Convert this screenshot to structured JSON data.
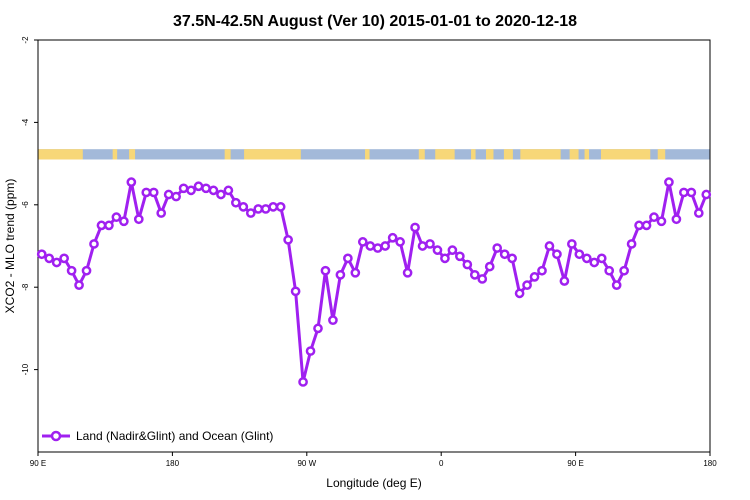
{
  "chart_data": {
    "type": "line",
    "title": "37.5N-42.5N August (Ver 10)   2015-01-01 to 2020-12-18",
    "xlabel": "Longitude (deg E)",
    "ylabel": "XCO2 - MLO trend (ppm)",
    "xlim": [
      90,
      540
    ],
    "ylim": [
      -12.0,
      -2.0
    ],
    "x_ticks": [
      {
        "value": 90,
        "label": "90 E"
      },
      {
        "value": 180,
        "label": "180"
      },
      {
        "value": 270,
        "label": "90 W"
      },
      {
        "value": 360,
        "label": "0"
      },
      {
        "value": 450,
        "label": "90 E"
      },
      {
        "value": 540,
        "label": "180"
      }
    ],
    "y_ticks": [
      {
        "value": -2,
        "label": "-2"
      },
      {
        "value": -4,
        "label": "-4"
      },
      {
        "value": -6,
        "label": "-6"
      },
      {
        "value": -8,
        "label": "-8"
      },
      {
        "value": -10,
        "label": "-10"
      }
    ],
    "legend_position": "bottom-left",
    "colors": {
      "series": "#a020f0",
      "land": "#f7d778",
      "ocean": "#a3b9d9"
    },
    "land_ocean_strip": {
      "y_top": -4.65,
      "y_bottom": -4.9,
      "land_segments": [
        [
          90,
          120
        ],
        [
          140,
          143
        ],
        [
          151,
          155
        ],
        [
          215,
          219
        ],
        [
          228,
          266
        ],
        [
          309,
          312
        ],
        [
          345,
          349
        ],
        [
          356,
          369
        ],
        [
          380,
          383
        ],
        [
          390,
          395
        ],
        [
          402,
          408
        ],
        [
          413,
          440
        ],
        [
          446,
          452
        ],
        [
          456,
          459
        ],
        [
          467,
          500
        ],
        [
          505,
          510
        ]
      ]
    },
    "series": [
      {
        "name": "Land (Nadir&Glint) and Ocean (Glint)",
        "x": [
          92.5,
          97.5,
          102.5,
          107.5,
          112.5,
          117.5,
          122.5,
          127.5,
          132.5,
          137.5,
          142.5,
          147.5,
          152.5,
          157.5,
          162.5,
          167.5,
          172.5,
          177.5,
          182.5,
          187.5,
          192.5,
          197.5,
          202.5,
          207.5,
          212.5,
          217.5,
          222.5,
          227.5,
          232.5,
          237.5,
          242.5,
          247.5,
          252.5,
          257.5,
          262.5,
          267.5,
          272.5,
          277.5,
          282.5,
          287.5,
          292.5,
          297.5,
          302.5,
          307.5,
          312.5,
          317.5,
          322.5,
          327.5,
          332.5,
          337.5,
          342.5,
          347.5,
          352.5,
          357.5,
          362.5,
          367.5,
          372.5,
          377.5,
          382.5,
          387.5,
          392.5,
          397.5,
          402.5,
          407.5,
          412.5,
          417.5,
          422.5,
          427.5,
          432.5,
          437.5,
          442.5,
          447.5,
          452.5,
          457.5,
          462.5,
          467.5,
          472.5,
          477.5,
          482.5,
          487.5,
          492.5,
          497.5,
          502.5,
          507.5,
          512.5,
          517.5,
          522.5,
          527.5,
          532.5,
          537.5
        ],
        "y": [
          -7.2,
          -7.3,
          -7.4,
          -7.3,
          -7.6,
          -7.95,
          -7.6,
          -6.95,
          -6.5,
          -6.5,
          -6.3,
          -6.4,
          -5.45,
          -6.35,
          -5.7,
          -5.7,
          -6.2,
          -5.75,
          -5.8,
          -5.6,
          -5.65,
          -5.55,
          -5.6,
          -5.65,
          -5.75,
          -5.65,
          -5.95,
          -6.05,
          -6.2,
          -6.1,
          -6.1,
          -6.05,
          -6.05,
          -6.85,
          -8.1,
          -10.3,
          -9.55,
          -9.0,
          -7.6,
          -8.8,
          -7.7,
          -7.3,
          -7.65,
          -6.9,
          -7.0,
          -7.05,
          -7.0,
          -6.8,
          -6.9,
          -7.65,
          -6.55,
          -7.0,
          -6.95,
          -7.1,
          -7.3,
          -7.1,
          -7.25,
          -7.45,
          -7.7,
          -7.8,
          -7.5,
          -7.05,
          -7.2,
          -7.3,
          -8.15,
          -7.95,
          -7.75,
          -7.6,
          -7.0,
          -7.2,
          -7.85,
          -6.95,
          -7.2,
          -7.3,
          -7.4,
          -7.3,
          -7.6,
          -7.95,
          -7.6,
          -6.95,
          -6.5,
          -6.5,
          -6.3,
          -6.4,
          -5.45,
          -6.35,
          -5.7,
          -5.7,
          -6.2,
          -5.75
        ]
      }
    ]
  }
}
